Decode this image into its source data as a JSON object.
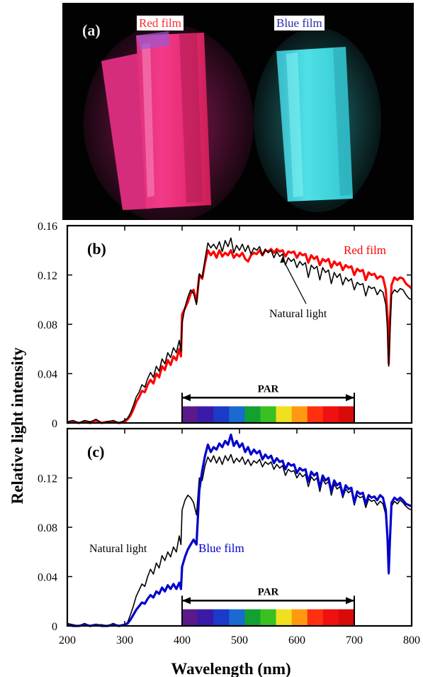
{
  "photo": {
    "panel_label": "(a)",
    "red_label": "Red film",
    "blue_label": "Blue film",
    "red_label_color": "#ff2a2a",
    "blue_label_color": "#2a2aa8"
  },
  "colors": {
    "natural": "#000000",
    "red": "#ff0000",
    "blue": "#0000cc"
  },
  "chart_data": [
    {
      "type": "line",
      "panel_label": "(b)",
      "xlim": [
        200,
        800
      ],
      "ylim": [
        0,
        0.16
      ],
      "yticks": [
        0,
        0.04,
        0.08,
        0.12,
        0.16
      ],
      "ytick_labels": [
        "0",
        "0.04",
        "0.08",
        "0.12",
        "0.16"
      ],
      "xticks": [
        200,
        300,
        400,
        500,
        600,
        700,
        800
      ],
      "show_xtick_labels": false,
      "x": [
        200,
        210,
        220,
        230,
        240,
        250,
        260,
        270,
        280,
        290,
        300,
        305,
        310,
        315,
        320,
        325,
        330,
        335,
        340,
        345,
        350,
        355,
        360,
        365,
        370,
        375,
        380,
        385,
        390,
        395,
        398,
        400,
        405,
        410,
        415,
        420,
        425,
        430,
        435,
        440,
        445,
        450,
        455,
        460,
        465,
        470,
        475,
        480,
        485,
        490,
        495,
        500,
        505,
        510,
        515,
        520,
        525,
        530,
        535,
        540,
        545,
        550,
        555,
        560,
        565,
        570,
        575,
        580,
        585,
        590,
        595,
        600,
        605,
        610,
        615,
        620,
        625,
        630,
        635,
        640,
        645,
        650,
        655,
        660,
        665,
        670,
        675,
        680,
        685,
        690,
        695,
        700,
        705,
        710,
        715,
        720,
        725,
        730,
        735,
        740,
        745,
        750,
        755,
        758,
        760,
        762,
        765,
        770,
        775,
        780,
        785,
        790,
        795,
        800
      ],
      "series": [
        {
          "name": "Natural light",
          "color": "#000000",
          "width": 1.6,
          "values": [
            0.001,
            0.002,
            0,
            0.002,
            0.001,
            0.003,
            0,
            0.001,
            0.002,
            0,
            0.002,
            0.004,
            0.008,
            0.014,
            0.021,
            0.025,
            0.031,
            0.029,
            0.036,
            0.041,
            0.037,
            0.046,
            0.042,
            0.052,
            0.048,
            0.057,
            0.053,
            0.061,
            0.057,
            0.067,
            0.058,
            0.081,
            0.094,
            0.102,
            0.108,
            0.105,
            0.096,
            0.121,
            0.118,
            0.133,
            0.146,
            0.142,
            0.145,
            0.141,
            0.147,
            0.139,
            0.148,
            0.143,
            0.15,
            0.138,
            0.144,
            0.14,
            0.145,
            0.139,
            0.144,
            0.137,
            0.142,
            0.14,
            0.143,
            0.136,
            0.141,
            0.138,
            0.14,
            0.134,
            0.139,
            0.135,
            0.137,
            0.128,
            0.134,
            0.131,
            0.133,
            0.126,
            0.131,
            0.128,
            0.13,
            0.118,
            0.128,
            0.125,
            0.127,
            0.116,
            0.126,
            0.122,
            0.124,
            0.113,
            0.122,
            0.118,
            0.121,
            0.112,
            0.118,
            0.115,
            0.117,
            0.108,
            0.114,
            0.112,
            0.113,
            0.103,
            0.111,
            0.109,
            0.11,
            0.104,
            0.108,
            0.106,
            0.096,
            0.075,
            0.046,
            0.072,
            0.104,
            0.108,
            0.106,
            0.109,
            0.108,
            0.104,
            0.101,
            0.1
          ]
        },
        {
          "name": "Red film",
          "color": "#ff0000",
          "width": 3.2,
          "values": [
            0,
            0.001,
            0,
            0.001,
            0,
            0.002,
            0,
            0.001,
            0.001,
            0,
            0.001,
            0.003,
            0.006,
            0.011,
            0.017,
            0.021,
            0.026,
            0.025,
            0.031,
            0.035,
            0.032,
            0.04,
            0.037,
            0.046,
            0.043,
            0.051,
            0.047,
            0.054,
            0.051,
            0.06,
            0.054,
            0.088,
            0.093,
            0.098,
            0.105,
            0.108,
            0.098,
            0.12,
            0.117,
            0.13,
            0.14,
            0.136,
            0.139,
            0.134,
            0.14,
            0.135,
            0.138,
            0.136,
            0.14,
            0.134,
            0.137,
            0.135,
            0.138,
            0.133,
            0.131,
            0.136,
            0.138,
            0.137,
            0.14,
            0.136,
            0.14,
            0.139,
            0.141,
            0.138,
            0.141,
            0.139,
            0.14,
            0.135,
            0.139,
            0.138,
            0.139,
            0.134,
            0.138,
            0.136,
            0.137,
            0.13,
            0.136,
            0.133,
            0.135,
            0.128,
            0.133,
            0.131,
            0.133,
            0.126,
            0.131,
            0.128,
            0.13,
            0.124,
            0.128,
            0.126,
            0.127,
            0.12,
            0.125,
            0.123,
            0.124,
            0.116,
            0.122,
            0.12,
            0.121,
            0.117,
            0.119,
            0.118,
            0.108,
            0.085,
            0.048,
            0.08,
            0.112,
            0.118,
            0.116,
            0.118,
            0.117,
            0.113,
            0.111,
            0.109
          ]
        }
      ],
      "labels": {
        "red": "Red film",
        "natural": "Natural light"
      },
      "par": {
        "label": "PAR",
        "start": 400,
        "end": 700
      }
    },
    {
      "type": "line",
      "panel_label": "(c)",
      "xlim": [
        200,
        800
      ],
      "ylim": [
        0,
        0.16
      ],
      "yticks": [
        0,
        0.04,
        0.08,
        0.12,
        0.16
      ],
      "ytick_labels": [
        "0",
        "0.04",
        "0.08",
        "0.12",
        ""
      ],
      "xticks": [
        200,
        300,
        400,
        500,
        600,
        700,
        800
      ],
      "xtick_labels": [
        "200",
        "300",
        "400",
        "500",
        "600",
        "700",
        "800"
      ],
      "show_xtick_labels": true,
      "xlabel": "Wavelength (nm)",
      "x": [
        200,
        210,
        220,
        230,
        240,
        250,
        260,
        270,
        280,
        290,
        300,
        305,
        310,
        315,
        320,
        325,
        330,
        335,
        340,
        345,
        350,
        355,
        360,
        365,
        370,
        375,
        380,
        385,
        390,
        395,
        398,
        400,
        405,
        410,
        415,
        420,
        425,
        430,
        435,
        440,
        445,
        450,
        455,
        460,
        465,
        470,
        475,
        480,
        485,
        490,
        495,
        500,
        505,
        510,
        515,
        520,
        525,
        530,
        535,
        540,
        545,
        550,
        555,
        560,
        565,
        570,
        575,
        580,
        585,
        590,
        595,
        600,
        605,
        610,
        615,
        620,
        625,
        630,
        635,
        640,
        645,
        650,
        655,
        660,
        665,
        670,
        675,
        680,
        685,
        690,
        695,
        700,
        705,
        710,
        715,
        720,
        725,
        730,
        735,
        740,
        745,
        750,
        755,
        758,
        760,
        762,
        765,
        770,
        775,
        780,
        785,
        790,
        795,
        800
      ],
      "series": [
        {
          "name": "Natural light",
          "color": "#000000",
          "width": 1.6,
          "values": [
            0.002,
            0.001,
            0,
            0.002,
            0,
            0.001,
            0.001,
            0,
            0.002,
            0,
            0.001,
            0.003,
            0.009,
            0.016,
            0.024,
            0.029,
            0.034,
            0.032,
            0.04,
            0.046,
            0.042,
            0.051,
            0.047,
            0.057,
            0.053,
            0.06,
            0.056,
            0.064,
            0.06,
            0.073,
            0.066,
            0.094,
            0.102,
            0.106,
            0.104,
            0.1,
            0.09,
            0.12,
            0.118,
            0.13,
            0.137,
            0.133,
            0.138,
            0.132,
            0.137,
            0.131,
            0.138,
            0.134,
            0.139,
            0.132,
            0.136,
            0.133,
            0.137,
            0.131,
            0.135,
            0.13,
            0.134,
            0.132,
            0.135,
            0.129,
            0.133,
            0.131,
            0.133,
            0.127,
            0.131,
            0.128,
            0.13,
            0.122,
            0.127,
            0.125,
            0.126,
            0.12,
            0.124,
            0.121,
            0.123,
            0.113,
            0.121,
            0.118,
            0.12,
            0.109,
            0.119,
            0.115,
            0.117,
            0.106,
            0.115,
            0.111,
            0.113,
            0.104,
            0.111,
            0.108,
            0.11,
            0.098,
            0.106,
            0.104,
            0.105,
            0.096,
            0.103,
            0.101,
            0.102,
            0.098,
            0.101,
            0.099,
            0.09,
            0.068,
            0.042,
            0.066,
            0.097,
            0.101,
            0.099,
            0.102,
            0.1,
            0.097,
            0.095,
            0.094
          ]
        },
        {
          "name": "Blue film",
          "color": "#0000cc",
          "width": 3.2,
          "values": [
            0.001,
            0,
            0,
            0.001,
            0,
            0.001,
            0,
            0,
            0.001,
            0,
            0.001,
            0.002,
            0.005,
            0.009,
            0.013,
            0.016,
            0.019,
            0.018,
            0.022,
            0.025,
            0.023,
            0.028,
            0.026,
            0.031,
            0.028,
            0.033,
            0.03,
            0.034,
            0.03,
            0.035,
            0.03,
            0.048,
            0.056,
            0.062,
            0.066,
            0.07,
            0.066,
            0.11,
            0.126,
            0.138,
            0.147,
            0.141,
            0.145,
            0.143,
            0.148,
            0.145,
            0.15,
            0.147,
            0.155,
            0.146,
            0.15,
            0.145,
            0.148,
            0.141,
            0.145,
            0.139,
            0.143,
            0.14,
            0.142,
            0.135,
            0.139,
            0.136,
            0.138,
            0.132,
            0.136,
            0.133,
            0.134,
            0.127,
            0.132,
            0.13,
            0.131,
            0.124,
            0.128,
            0.126,
            0.127,
            0.117,
            0.125,
            0.122,
            0.124,
            0.112,
            0.122,
            0.118,
            0.12,
            0.109,
            0.118,
            0.114,
            0.116,
            0.106,
            0.114,
            0.111,
            0.112,
            0.1,
            0.109,
            0.107,
            0.108,
            0.099,
            0.106,
            0.104,
            0.105,
            0.102,
            0.106,
            0.104,
            0.094,
            0.07,
            0.043,
            0.068,
            0.1,
            0.104,
            0.102,
            0.104,
            0.102,
            0.099,
            0.098,
            0.097
          ]
        }
      ],
      "labels": {
        "blue": "Blue film",
        "natural": "Natural light"
      },
      "par": {
        "label": "PAR",
        "start": 400,
        "end": 700
      }
    }
  ],
  "ylabel": "Relative light intensity"
}
